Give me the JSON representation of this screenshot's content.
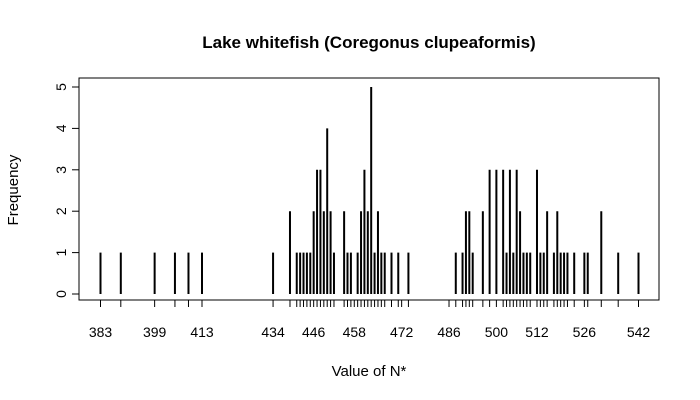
{
  "chart_data": {
    "type": "bar",
    "title": "Lake whitefish (Coregonus clupeaformis)",
    "xlabel": "Value of N*",
    "ylabel": "Frequency",
    "xlim": [
      376,
      545
    ],
    "ylim": [
      0,
      5
    ],
    "x_tick_labels": [
      383,
      399,
      413,
      434,
      446,
      458,
      472,
      486,
      500,
      512,
      526,
      542
    ],
    "y_tick_labels": [
      0,
      1,
      2,
      3,
      4,
      5
    ],
    "grid": false,
    "legend": "none",
    "x": [
      383,
      389,
      399,
      405,
      409,
      413,
      434,
      439,
      441,
      442,
      443,
      444,
      445,
      446,
      447,
      448,
      449,
      450,
      451,
      452,
      455,
      456,
      457,
      459,
      460,
      461,
      462,
      463,
      464,
      465,
      466,
      467,
      469,
      471,
      474,
      488,
      490,
      491,
      492,
      493,
      496,
      498,
      500,
      502,
      503,
      504,
      505,
      506,
      507,
      508,
      509,
      510,
      512,
      513,
      514,
      515,
      517,
      518,
      519,
      520,
      521,
      523,
      526,
      527,
      531,
      536,
      542
    ],
    "values": [
      1,
      1,
      1,
      1,
      1,
      1,
      1,
      2,
      1,
      1,
      1,
      1,
      1,
      2,
      3,
      3,
      2,
      4,
      2,
      1,
      2,
      1,
      1,
      1,
      2,
      3,
      2,
      5,
      1,
      2,
      1,
      1,
      1,
      1,
      1,
      1,
      1,
      2,
      2,
      1,
      2,
      3,
      3,
      3,
      1,
      3,
      1,
      3,
      2,
      1,
      1,
      1,
      3,
      1,
      1,
      2,
      1,
      2,
      1,
      1,
      1,
      1,
      1,
      1,
      2,
      1,
      1
    ],
    "colors": {
      "bar": "#000000",
      "axis": "#000000",
      "background": "#ffffff"
    }
  }
}
